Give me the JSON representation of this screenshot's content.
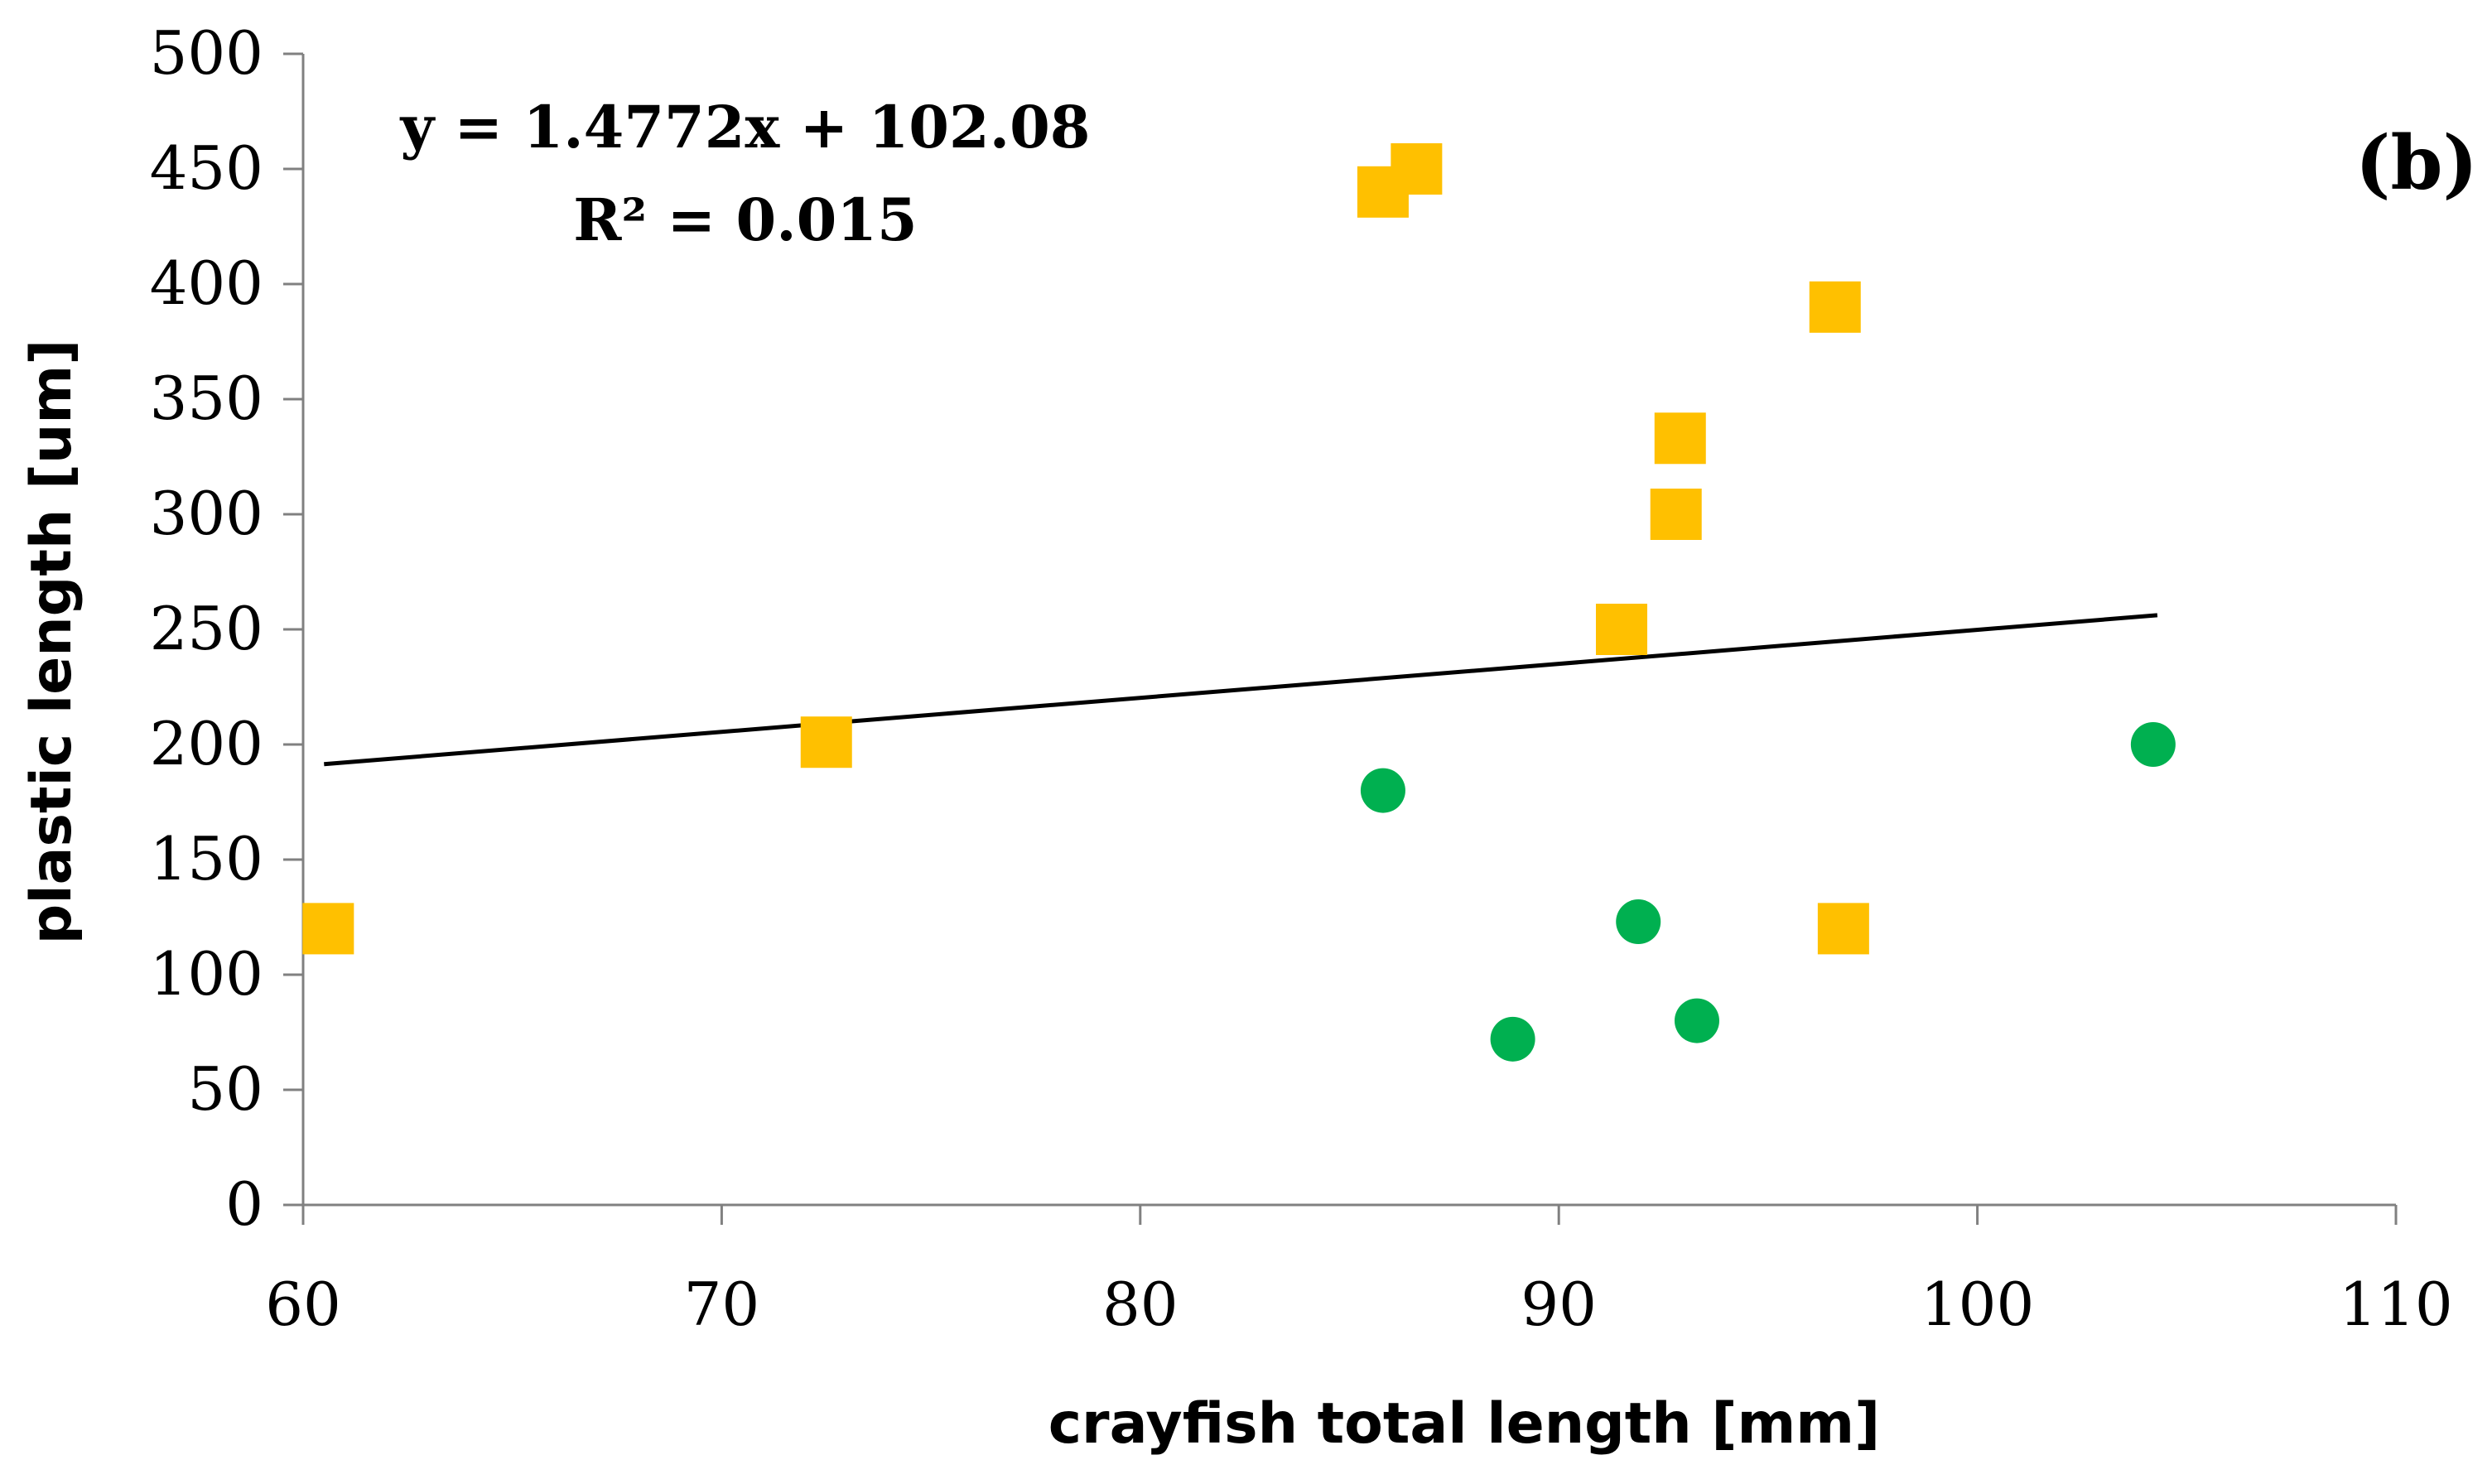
{
  "chart_data": {
    "type": "scatter",
    "title": "",
    "panel_label": "(b)",
    "xlabel": "crayfish total length [mm]",
    "ylabel": "plastic length [um]",
    "xlim": [
      60,
      110
    ],
    "ylim": [
      0,
      500
    ],
    "x_ticks": [
      60,
      70,
      80,
      90,
      100,
      110
    ],
    "y_ticks": [
      0,
      50,
      100,
      150,
      200,
      250,
      300,
      350,
      400,
      450,
      500
    ],
    "grid": false,
    "legend": false,
    "series": [
      {
        "marker": "square",
        "color": "#FFC000",
        "points": [
          {
            "x": 60.6,
            "y": 120
          },
          {
            "x": 72.5,
            "y": 201
          },
          {
            "x": 85.8,
            "y": 440
          },
          {
            "x": 86.6,
            "y": 450
          },
          {
            "x": 91.5,
            "y": 250
          },
          {
            "x": 92.8,
            "y": 300
          },
          {
            "x": 92.9,
            "y": 333
          },
          {
            "x": 96.6,
            "y": 390
          },
          {
            "x": 96.8,
            "y": 120
          }
        ]
      },
      {
        "marker": "circle",
        "color": "#00B050",
        "points": [
          {
            "x": 85.8,
            "y": 180
          },
          {
            "x": 88.9,
            "y": 72
          },
          {
            "x": 91.9,
            "y": 123
          },
          {
            "x": 93.3,
            "y": 80
          },
          {
            "x": 104.2,
            "y": 200
          }
        ]
      }
    ],
    "trendline": {
      "type": "linear",
      "slope": 1.4772,
      "intercept": 102.08,
      "x_range": [
        60.5,
        104.3
      ],
      "color": "#000000"
    },
    "annotations": {
      "equation": "y = 1.4772x + 102.08",
      "r_squared": "R² = 0.015"
    }
  }
}
